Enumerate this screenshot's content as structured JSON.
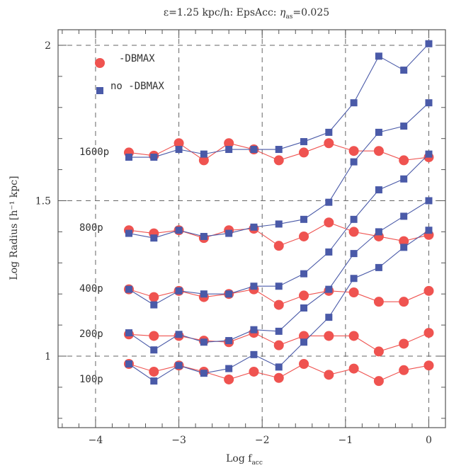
{
  "chart_data": {
    "type": "line",
    "title": "ε=1.25 kpc/h: EpsAcc: η_as=0.025",
    "title_parts": {
      "eps": "ε",
      "main": "=1.25 kpc/h: EpsAcc: ",
      "eta": "η",
      "eta_sub": "as",
      "tail": "=0.025"
    },
    "xlabel": "Log f",
    "xlabel_sub": "acc",
    "ylabel": "Log Radius [h⁻¹ kpc]",
    "xlim": [
      -4.45,
      0.2
    ],
    "ylim": [
      0.77,
      2.05
    ],
    "xticks": [
      -4,
      -3,
      -2,
      -1,
      0
    ],
    "xtick_labels": [
      "−4",
      "−3",
      "−2",
      "−1",
      "0"
    ],
    "yticks": [
      1,
      1.5,
      2
    ],
    "ytick_labels": [
      "1",
      "1.5",
      "2"
    ],
    "grid": "dashed at major ticks",
    "legend_position": "top-left",
    "legend": [
      {
        "label": "-DBMAX",
        "marker": "circle",
        "color": "#ef5350"
      },
      {
        "label": "no -DBMAX",
        "marker": "square",
        "color": "#4a5aa8"
      }
    ],
    "annotations": [
      "1600p",
      "800p",
      "400p",
      "200p",
      "100p"
    ],
    "x": [
      -3.6,
      -3.3,
      -3.0,
      -2.7,
      -2.4,
      -2.1,
      -1.8,
      -1.5,
      -1.2,
      -0.9,
      -0.6,
      -0.3,
      0.0
    ],
    "series": [
      {
        "name": "-DBMAX",
        "group": "1600p",
        "marker": "circle",
        "color": "#ef5350",
        "values": [
          1.655,
          1.645,
          1.685,
          1.63,
          1.685,
          1.665,
          1.63,
          1.655,
          1.685,
          1.66,
          1.66,
          1.63,
          1.64
        ]
      },
      {
        "name": "no -DBMAX",
        "group": "1600p",
        "marker": "square",
        "color": "#4a5aa8",
        "values": [
          1.64,
          1.64,
          1.665,
          1.65,
          1.665,
          1.665,
          1.665,
          1.69,
          1.72,
          1.815,
          1.965,
          1.92,
          2.005
        ]
      },
      {
        "name": "-DBMAX",
        "group": "800p",
        "marker": "circle",
        "color": "#ef5350",
        "values": [
          1.405,
          1.395,
          1.405,
          1.38,
          1.405,
          1.41,
          1.355,
          1.385,
          1.43,
          1.4,
          1.385,
          1.37,
          1.39
        ]
      },
      {
        "name": "no -DBMAX",
        "group": "800p",
        "marker": "square",
        "color": "#4a5aa8",
        "values": [
          1.395,
          1.38,
          1.405,
          1.385,
          1.395,
          1.415,
          1.425,
          1.44,
          1.495,
          1.625,
          1.72,
          1.74,
          1.815
        ]
      },
      {
        "name": "-DBMAX",
        "group": "400p",
        "marker": "circle",
        "color": "#ef5350",
        "values": [
          1.215,
          1.19,
          1.21,
          1.19,
          1.2,
          1.215,
          1.165,
          1.195,
          1.21,
          1.205,
          1.175,
          1.175,
          1.21
        ]
      },
      {
        "name": "no -DBMAX",
        "group": "400p",
        "marker": "square",
        "color": "#4a5aa8",
        "values": [
          1.215,
          1.165,
          1.21,
          1.2,
          1.2,
          1.225,
          1.225,
          1.265,
          1.335,
          1.44,
          1.535,
          1.57,
          1.65
        ]
      },
      {
        "name": "-DBMAX",
        "group": "200p",
        "marker": "circle",
        "color": "#ef5350",
        "values": [
          1.07,
          1.065,
          1.065,
          1.05,
          1.045,
          1.075,
          1.035,
          1.065,
          1.065,
          1.065,
          1.015,
          1.04,
          1.075
        ]
      },
      {
        "name": "no -DBMAX",
        "group": "200p",
        "marker": "square",
        "color": "#4a5aa8",
        "values": [
          1.075,
          1.02,
          1.07,
          1.045,
          1.05,
          1.085,
          1.08,
          1.155,
          1.215,
          1.33,
          1.4,
          1.45,
          1.5
        ]
      },
      {
        "name": "-DBMAX",
        "group": "100p",
        "marker": "circle",
        "color": "#ef5350",
        "values": [
          0.975,
          0.95,
          0.97,
          0.95,
          0.925,
          0.95,
          0.93,
          0.975,
          0.94,
          0.96,
          0.92,
          0.955,
          0.97
        ]
      },
      {
        "name": "no -DBMAX",
        "group": "100p",
        "marker": "square",
        "color": "#4a5aa8",
        "values": [
          0.975,
          0.92,
          0.97,
          0.945,
          0.96,
          1.005,
          0.965,
          1.045,
          1.125,
          1.25,
          1.285,
          1.35,
          1.405
        ]
      }
    ]
  }
}
